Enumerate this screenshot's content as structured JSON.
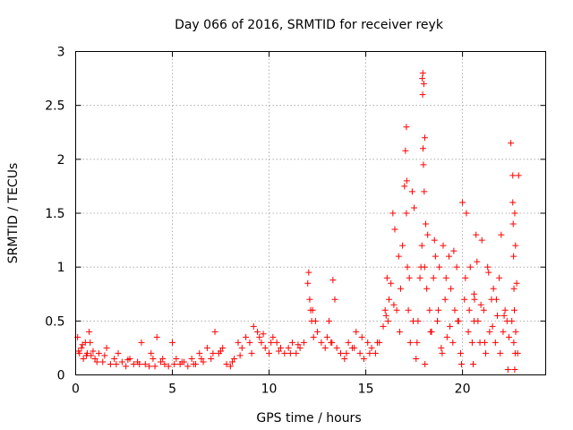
{
  "chart_data": {
    "type": "scatter",
    "title": "Day 066 of 2016, SRMTID for receiver reyk",
    "xlabel": "GPS time / hours",
    "ylabel": "SRMTID / TECUs",
    "xlim": [
      0,
      24.3
    ],
    "ylim": [
      0,
      3
    ],
    "xticks": [
      0,
      5,
      10,
      15,
      20
    ],
    "xtick_labels": [
      "0",
      "5",
      "10",
      "15",
      "20"
    ],
    "yticks": [
      0,
      0.5,
      1,
      1.5,
      2,
      2.5,
      3
    ],
    "ytick_labels": [
      "0",
      "0.5",
      "1",
      "1.5",
      "2",
      "2.5",
      "3"
    ],
    "grid": true,
    "marker": "plus",
    "series": [
      {
        "name": "SRMTID",
        "color": "#ff0000",
        "x": [
          0.1,
          0.2,
          0.3,
          0.4,
          0.5,
          0.6,
          0.7,
          0.8,
          0.9,
          1.0,
          1.2,
          1.4,
          1.6,
          1.8,
          2.0,
          2.2,
          2.4,
          2.6,
          2.8,
          3.0,
          3.2,
          3.4,
          3.6,
          3.8,
          4.0,
          4.2,
          4.4,
          4.6,
          4.8,
          5.0,
          5.2,
          5.4,
          5.6,
          5.8,
          6.0,
          6.2,
          6.4,
          6.6,
          6.8,
          7.0,
          7.2,
          7.4,
          7.6,
          7.8,
          8.0,
          8.2,
          8.4,
          8.6,
          8.8,
          9.0,
          9.2,
          9.4,
          9.6,
          9.8,
          10.0,
          10.2,
          10.4,
          10.6,
          10.8,
          11.0,
          11.2,
          11.4,
          11.6,
          11.8,
          12.0,
          12.05,
          12.1,
          12.15,
          12.2,
          12.3,
          12.5,
          12.7,
          12.9,
          13.0,
          13.1,
          13.2,
          13.3,
          13.5,
          13.7,
          13.9,
          14.1,
          14.3,
          14.5,
          14.7,
          14.9,
          15.1,
          15.3,
          15.5,
          15.7,
          15.9,
          16.0,
          16.1,
          16.2,
          16.3,
          16.4,
          16.5,
          16.6,
          16.7,
          16.8,
          16.9,
          17.0,
          17.05,
          17.1,
          17.15,
          17.2,
          17.3,
          17.4,
          17.5,
          17.6,
          17.7,
          17.8,
          17.9,
          17.95,
          18.0,
          18.05,
          18.1,
          18.2,
          18.3,
          18.4,
          18.5,
          18.6,
          18.7,
          18.8,
          18.9,
          19.0,
          19.1,
          19.2,
          19.3,
          19.4,
          19.5,
          19.6,
          19.7,
          19.8,
          19.9,
          20.0,
          20.1,
          20.2,
          20.3,
          20.4,
          20.5,
          20.6,
          20.7,
          20.8,
          20.9,
          21.0,
          21.1,
          21.2,
          21.3,
          21.4,
          21.5,
          21.6,
          21.7,
          21.8,
          21.9,
          22.0,
          22.1,
          22.2,
          22.3,
          22.4,
          22.5,
          22.6,
          22.7,
          22.8,
          22.9,
          0.15,
          0.35,
          0.55,
          0.75,
          1.1,
          1.5,
          2.1,
          2.7,
          3.3,
          3.9,
          4.1,
          4.5,
          5.1,
          5.5,
          6.1,
          6.5,
          7.1,
          7.5,
          8.1,
          8.5,
          9.1,
          9.5,
          9.7,
          10.1,
          10.5,
          11.1,
          11.5,
          12.25,
          12.4,
          13.25,
          13.4,
          14.0,
          14.4,
          14.8,
          15.2,
          15.6,
          16.05,
          16.15,
          16.45,
          16.75,
          17.25,
          17.45,
          17.65,
          17.85,
          18.15,
          18.35,
          18.55,
          18.75,
          18.95,
          19.15,
          19.35,
          19.55,
          19.75,
          19.95,
          20.15,
          20.35,
          20.55,
          20.75,
          20.95,
          21.15,
          21.35,
          21.55,
          21.75,
          21.95,
          22.15,
          22.35,
          22.55,
          22.65,
          22.75,
          22.85,
          17.92,
          17.94,
          17.96,
          17.98,
          18.02,
          18.04,
          18.06,
          17.1,
          17.12,
          20.6,
          20.62,
          22.6,
          22.62,
          22.64,
          22.66,
          22.68,
          22.7,
          22.72,
          22.74
        ],
        "y": [
          0.35,
          0.2,
          0.25,
          0.15,
          0.3,
          0.2,
          0.4,
          0.18,
          0.22,
          0.15,
          0.2,
          0.12,
          0.25,
          0.1,
          0.15,
          0.2,
          0.12,
          0.08,
          0.15,
          0.1,
          0.12,
          0.3,
          0.1,
          0.08,
          0.15,
          0.35,
          0.12,
          0.1,
          0.08,
          0.3,
          0.15,
          0.1,
          0.12,
          0.08,
          0.15,
          0.1,
          0.2,
          0.12,
          0.25,
          0.15,
          0.4,
          0.2,
          0.25,
          0.1,
          0.08,
          0.15,
          0.3,
          0.25,
          0.35,
          0.3,
          0.45,
          0.4,
          0.3,
          0.25,
          0.2,
          0.35,
          0.3,
          0.25,
          0.2,
          0.25,
          0.3,
          0.2,
          0.25,
          0.3,
          0.85,
          0.95,
          0.7,
          0.6,
          0.5,
          0.35,
          0.4,
          0.3,
          0.25,
          0.35,
          0.5,
          0.3,
          0.88,
          0.25,
          0.2,
          0.15,
          0.3,
          0.25,
          0.4,
          0.2,
          0.15,
          0.3,
          0.25,
          0.2,
          0.3,
          0.45,
          0.6,
          0.9,
          0.7,
          0.85,
          1.5,
          1.35,
          0.6,
          1.1,
          0.8,
          1.2,
          1.75,
          2.08,
          1.5,
          1.0,
          0.6,
          0.3,
          1.7,
          1.55,
          0.15,
          0.5,
          0.9,
          1.2,
          2.8,
          2.7,
          2.2,
          1.4,
          1.3,
          0.6,
          0.4,
          0.9,
          1.1,
          0.5,
          1.0,
          0.25,
          1.2,
          0.7,
          0.35,
          1.1,
          0.8,
          0.3,
          0.6,
          1.0,
          0.5,
          0.2,
          1.6,
          0.7,
          1.5,
          0.4,
          1.0,
          0.3,
          0.75,
          1.3,
          0.5,
          0.3,
          1.25,
          0.6,
          0.2,
          1.0,
          0.4,
          0.7,
          0.8,
          0.3,
          0.55,
          0.9,
          1.3,
          0.4,
          0.6,
          0.5,
          0.35,
          2.15,
          1.85,
          1.5,
          0.85,
          1.85,
          0.22,
          0.28,
          0.18,
          0.3,
          0.12,
          0.18,
          0.1,
          0.14,
          0.1,
          0.2,
          0.08,
          0.15,
          0.1,
          0.12,
          0.1,
          0.15,
          0.2,
          0.22,
          0.12,
          0.18,
          0.2,
          0.35,
          0.38,
          0.3,
          0.22,
          0.2,
          0.28,
          0.6,
          0.5,
          0.3,
          0.7,
          0.2,
          0.25,
          0.35,
          0.2,
          0.3,
          0.55,
          0.5,
          0.65,
          0.4,
          0.9,
          0.5,
          0.3,
          1.0,
          0.8,
          0.4,
          1.25,
          0.6,
          0.2,
          0.9,
          0.45,
          1.15,
          0.5,
          0.1,
          0.9,
          0.6,
          0.1,
          1.05,
          0.65,
          0.3,
          0.95,
          0.45,
          0.7,
          0.2,
          0.55,
          0.05,
          0.5,
          0.3,
          0.4,
          0.2,
          2.75,
          2.6,
          2.1,
          1.95,
          1.7,
          1.0,
          0.1,
          2.3,
          1.8,
          0.5,
          0.7,
          1.6,
          1.4,
          1.1,
          0.8,
          0.6,
          0.05,
          0.2,
          1.2
        ]
      }
    ]
  }
}
